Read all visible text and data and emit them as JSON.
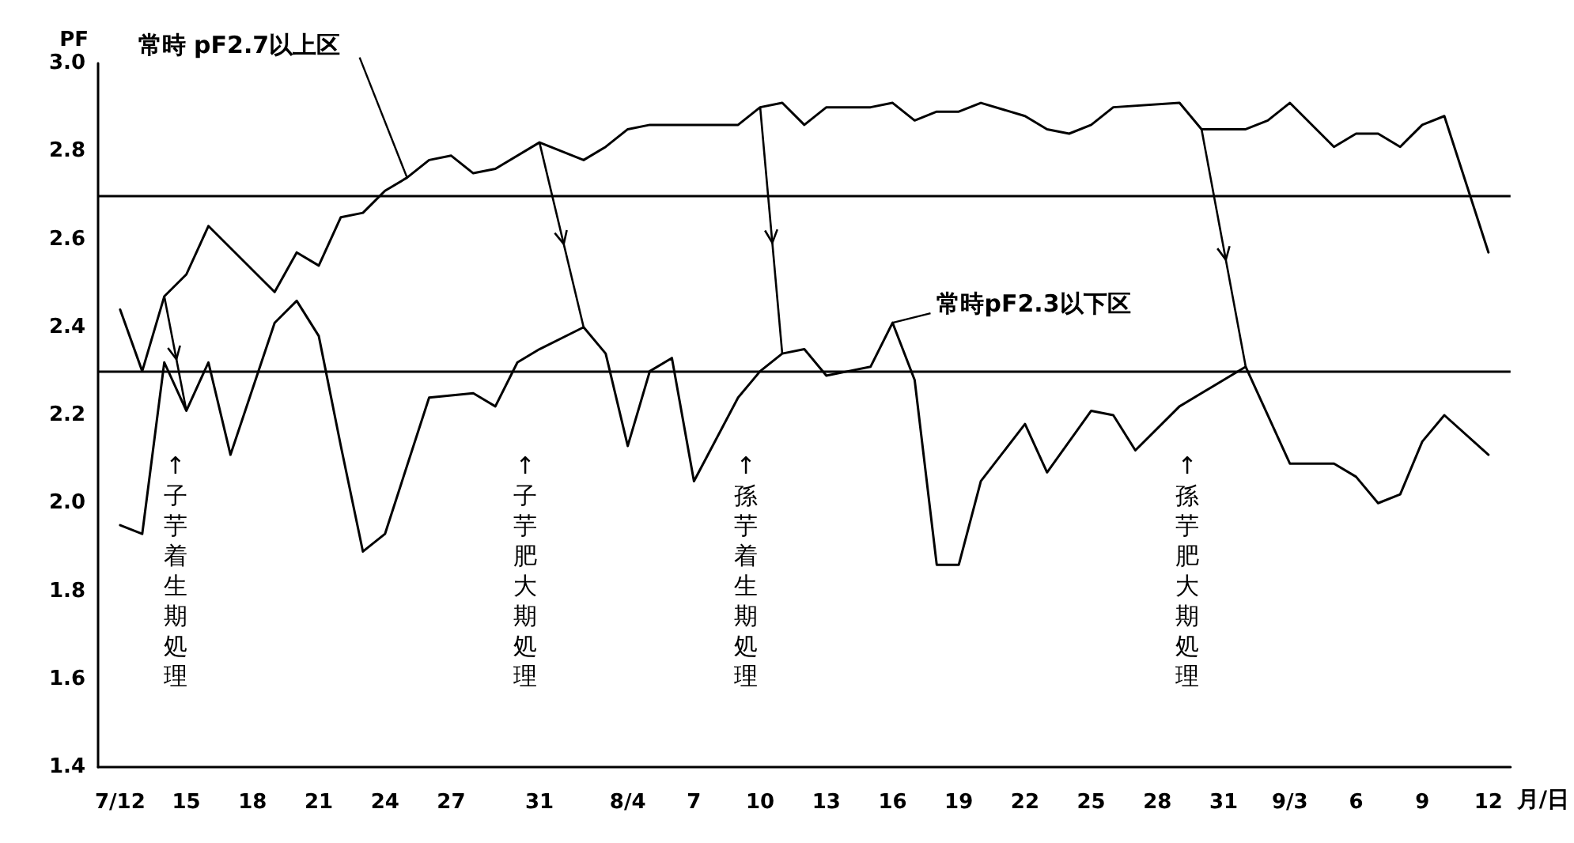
{
  "chart_data": {
    "type": "line",
    "ylabel": "PF",
    "xlabel": "月/日",
    "marker": "none",
    "line_style": "solid",
    "grid": false,
    "xlim": [
      "--07-11",
      "--09-13"
    ],
    "xticks": [
      {
        "value": "--07-12",
        "label": "7/12"
      },
      {
        "value": "--07-15",
        "label": "15"
      },
      {
        "value": "--07-18",
        "label": "18"
      },
      {
        "value": "--07-21",
        "label": "21"
      },
      {
        "value": "--07-24",
        "label": "24"
      },
      {
        "value": "--07-27",
        "label": "27"
      },
      {
        "value": "--07-31",
        "label": "31"
      },
      {
        "value": "--08-04",
        "label": "8/4"
      },
      {
        "value": "--08-07",
        "label": "7"
      },
      {
        "value": "--08-10",
        "label": "10"
      },
      {
        "value": "--08-13",
        "label": "13"
      },
      {
        "value": "--08-16",
        "label": "16"
      },
      {
        "value": "--08-19",
        "label": "19"
      },
      {
        "value": "--08-22",
        "label": "22"
      },
      {
        "value": "--08-25",
        "label": "25"
      },
      {
        "value": "--08-28",
        "label": "28"
      },
      {
        "value": "--08-31",
        "label": "31"
      },
      {
        "value": "--09-03",
        "label": "9/3"
      },
      {
        "value": "--09-06",
        "label": "6"
      },
      {
        "value": "--09-09",
        "label": "9"
      },
      {
        "value": "--09-12",
        "label": "12"
      }
    ],
    "ylim": [
      1.4,
      3.0
    ],
    "yticks": [
      1.4,
      1.6,
      1.8,
      {
        "value": 2,
        "label": "2.0"
      },
      2.2,
      2.4,
      2.6,
      2.8,
      {
        "value": 3,
        "label": "3.0"
      }
    ],
    "series": [
      {
        "name": "常時 pF2.7以上区",
        "color": "#000000",
        "x": [
          "--07-12",
          "--07-13",
          "--07-14",
          "--07-15",
          "--07-16",
          "--07-19",
          "--07-20",
          "--07-21",
          "--07-22",
          "--07-23",
          "--07-24",
          "--07-25",
          "--07-26",
          "--07-27",
          "--07-28",
          "--07-29",
          "--07-31",
          "--08-02",
          "--08-03",
          "--08-04",
          "--08-05",
          "--08-09",
          "--08-10",
          "--08-11",
          "--08-12",
          "--08-13",
          "--08-14",
          "--08-15",
          "--08-16",
          "--08-17",
          "--08-18",
          "--08-19",
          "--08-20",
          "--08-22",
          "--08-23",
          "--08-24",
          "--08-25",
          "--08-26",
          "--08-29",
          "--08-30",
          "--09-01",
          "--09-02",
          "--09-03",
          "--09-05",
          "--09-06",
          "--09-07",
          "--09-08",
          "--09-09",
          "--09-10",
          "--09-12"
        ],
        "values": [
          2.44,
          2.3,
          2.47,
          2.52,
          2.63,
          2.48,
          2.57,
          2.54,
          2.65,
          2.66,
          2.71,
          2.74,
          2.78,
          2.79,
          2.75,
          2.76,
          2.82,
          2.78,
          2.81,
          2.85,
          2.86,
          2.86,
          2.9,
          2.91,
          2.86,
          2.9,
          2.9,
          2.9,
          2.91,
          2.87,
          2.89,
          2.89,
          2.91,
          2.88,
          2.85,
          2.84,
          2.86,
          2.9,
          2.91,
          2.85,
          2.85,
          2.87,
          2.91,
          2.81,
          2.84,
          2.84,
          2.81,
          2.86,
          2.88,
          2.57
        ]
      },
      {
        "name": "常時pF2.3以下区",
        "color": "#000000",
        "x": [
          "--07-12",
          "--07-13",
          "--07-14",
          "--07-15",
          "--07-16",
          "--07-17",
          "--07-19",
          "--07-20",
          "--07-21",
          "--07-22",
          "--07-23",
          "--07-24",
          "--07-26",
          "--07-28",
          "--07-29",
          "--07-30",
          "--07-31",
          "--08-02",
          "--08-03",
          "--08-04",
          "--08-05",
          "--08-06",
          "--08-07",
          "--08-09",
          "--08-10",
          "--08-11",
          "--08-12",
          "--08-13",
          "--08-14",
          "--08-15",
          "--08-16",
          "--08-17",
          "--08-18",
          "--08-19",
          "--08-20",
          "--08-22",
          "--08-23",
          "--08-25",
          "--08-26",
          "--08-27",
          "--08-29",
          "--09-01",
          "--09-03",
          "--09-05",
          "--09-06",
          "--09-07",
          "--09-08",
          "--09-09",
          "--09-10",
          "--09-12"
        ],
        "values": [
          1.95,
          1.93,
          2.32,
          2.21,
          2.32,
          2.11,
          2.41,
          2.46,
          2.38,
          2.13,
          1.89,
          1.93,
          2.24,
          2.25,
          2.22,
          2.32,
          2.35,
          2.4,
          2.34,
          2.13,
          2.3,
          2.33,
          2.05,
          2.24,
          2.3,
          2.34,
          2.35,
          2.29,
          2.3,
          2.31,
          2.41,
          2.28,
          1.86,
          1.86,
          2.05,
          2.18,
          2.07,
          2.21,
          2.2,
          2.12,
          2.22,
          2.31,
          2.09,
          2.09,
          2.06,
          2.0,
          2.02,
          2.14,
          2.2,
          2.11
        ]
      }
    ],
    "ref_lines": [
      {
        "axis": "y",
        "value": 2.7,
        "color": "#000000"
      },
      {
        "axis": "y",
        "value": 2.3,
        "color": "#000000"
      }
    ],
    "annotations": [
      "↑子芋着生期処理",
      "↑子芋肥大期処理",
      "↑孫芋着生期処理",
      "↑孫芋肥大期処理"
    ]
  }
}
